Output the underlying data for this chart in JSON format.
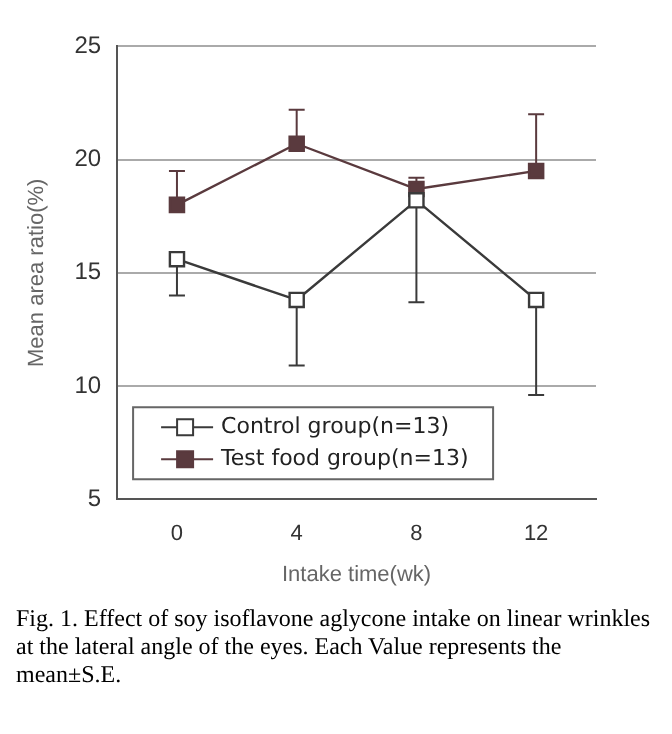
{
  "chart_data": {
    "type": "line",
    "xlabel": "Intake time(wk)",
    "ylabel": "Mean area ratio(%)",
    "categories": [
      "0",
      "4",
      "8",
      "12"
    ],
    "series": [
      {
        "name": "Control group(n=13)",
        "color": "#3a3a3a",
        "values": [
          15.6,
          13.8,
          18.2,
          13.8
        ],
        "errors": [
          [
            14.0,
            15.6
          ],
          [
            10.9,
            13.8
          ],
          [
            13.7,
            18.2
          ],
          [
            9.6,
            13.8
          ]
        ]
      },
      {
        "name": "Test food group(n=13)",
        "color": "#5a3a3e",
        "values": [
          18.0,
          20.7,
          18.7,
          19.5
        ],
        "errors": [
          [
            18.0,
            19.5
          ],
          [
            20.7,
            22.2
          ],
          [
            18.7,
            19.2
          ],
          [
            19.5,
            22.0
          ]
        ]
      }
    ],
    "ylim": [
      5,
      25
    ],
    "yticks": [
      5,
      10,
      15,
      20,
      25
    ],
    "grid": "y",
    "legend": "bottom left",
    "marker": "square",
    "line_style": "solid",
    "annotations": [
      "Fig. 1.  Effect of soy isoflavone aglycone intake on linear wrinkles at the lateral angle of the eyes. Each Value represents the mean±S.E."
    ]
  }
}
